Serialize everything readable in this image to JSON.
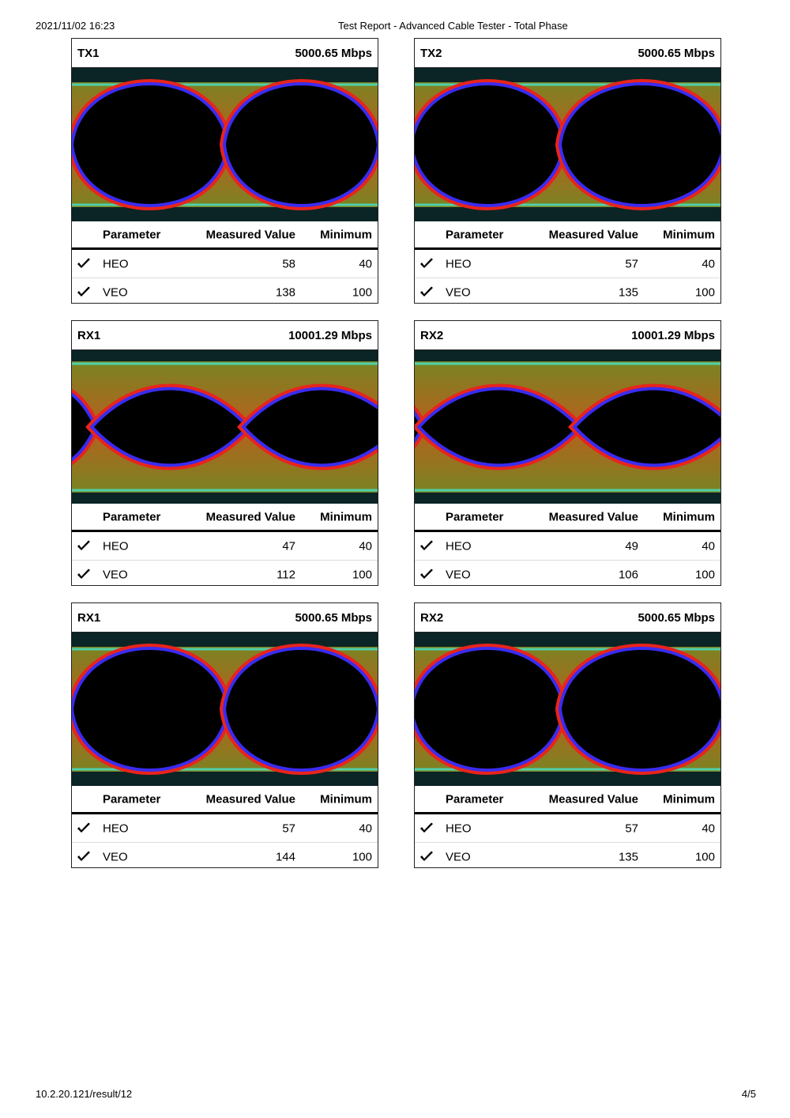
{
  "header": {
    "timestamp": "2021/11/02 16:23",
    "title": "Test Report - Advanced Cable Tester - Total Phase"
  },
  "panels": [
    {
      "name": "TX1",
      "rate": "5000.65 Mbps",
      "columns": [
        "Parameter",
        "Measured Value",
        "Minimum"
      ],
      "rows": [
        [
          "HEO",
          58,
          40
        ],
        [
          "VEO",
          138,
          100
        ]
      ]
    },
    {
      "name": "TX2",
      "rate": "5000.65 Mbps",
      "columns": [
        "Parameter",
        "Measured Value",
        "Minimum"
      ],
      "rows": [
        [
          "HEO",
          57,
          40
        ],
        [
          "VEO",
          135,
          100
        ]
      ]
    },
    {
      "name": "RX1",
      "rate": "10001.29 Mbps",
      "columns": [
        "Parameter",
        "Measured Value",
        "Minimum"
      ],
      "rows": [
        [
          "HEO",
          47,
          40
        ],
        [
          "VEO",
          112,
          100
        ]
      ]
    },
    {
      "name": "RX2",
      "rate": "10001.29 Mbps",
      "columns": [
        "Parameter",
        "Measured Value",
        "Minimum"
      ],
      "rows": [
        [
          "HEO",
          49,
          40
        ],
        [
          "VEO",
          106,
          100
        ]
      ]
    },
    {
      "name": "RX1",
      "rate": "5000.65 Mbps",
      "columns": [
        "Parameter",
        "Measured Value",
        "Minimum"
      ],
      "rows": [
        [
          "HEO",
          57,
          40
        ],
        [
          "VEO",
          144,
          100
        ]
      ]
    },
    {
      "name": "RX2",
      "rate": "5000.65 Mbps",
      "columns": [
        "Parameter",
        "Measured Value",
        "Minimum"
      ],
      "rows": [
        [
          "HEO",
          57,
          40
        ],
        [
          "VEO",
          135,
          100
        ]
      ]
    }
  ],
  "footer": {
    "url": "10.2.20.121/result/12",
    "page": "4/5"
  }
}
